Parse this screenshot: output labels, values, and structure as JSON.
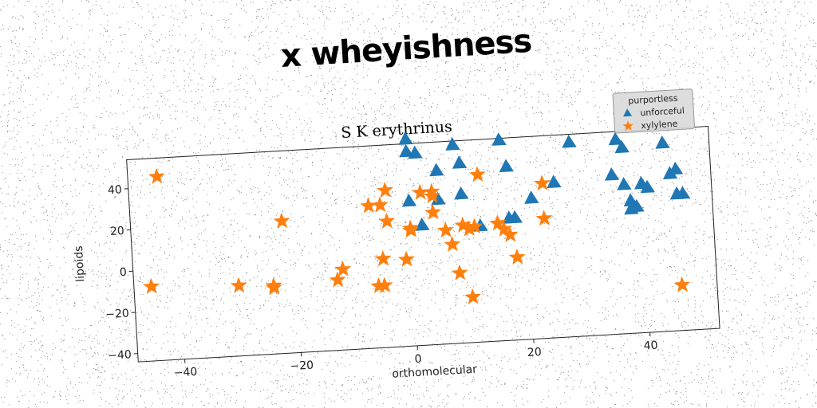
{
  "headline": "x wheyishness",
  "chart_data": {
    "type": "scatter",
    "title": "S K erythrinus",
    "xlabel": "orthomolecular",
    "ylabel": "lipoids",
    "xlim": [
      -48,
      52
    ],
    "ylim": [
      -44,
      54
    ],
    "xticks": [
      -40,
      -20,
      0,
      20,
      40
    ],
    "yticks": [
      -40,
      -20,
      0,
      20,
      40
    ],
    "grid": false,
    "legend": {
      "title": "purportless",
      "position": "top-right"
    },
    "series": [
      {
        "name": "unforceful",
        "marker": "triangle",
        "color": "#1f77b4",
        "points": [
          [
            0,
            56
          ],
          [
            0,
            50
          ],
          [
            1.5,
            49
          ],
          [
            8,
            52
          ],
          [
            16,
            53
          ],
          [
            28,
            50
          ],
          [
            36,
            50
          ],
          [
            37,
            46
          ],
          [
            44,
            47
          ],
          [
            5,
            40
          ],
          [
            9,
            43
          ],
          [
            17,
            40
          ],
          [
            0,
            26
          ],
          [
            5,
            26
          ],
          [
            9,
            28
          ],
          [
            21,
            24
          ],
          [
            25,
            31
          ],
          [
            35,
            33
          ],
          [
            37,
            28
          ],
          [
            40,
            28
          ],
          [
            41,
            26
          ],
          [
            45,
            32
          ],
          [
            46,
            34
          ],
          [
            46,
            22
          ],
          [
            47,
            22
          ],
          [
            38,
            20
          ],
          [
            39,
            17
          ],
          [
            38,
            16
          ],
          [
            18,
            15
          ],
          [
            17,
            15
          ],
          [
            2,
            14
          ],
          [
            12,
            12
          ]
        ]
      },
      {
        "name": "xylylene",
        "marker": "star",
        "color": "#ff7f0e",
        "points": [
          [
            -43,
            45
          ],
          [
            -22,
            20
          ],
          [
            -45,
            -8
          ],
          [
            -30,
            -10
          ],
          [
            -24,
            -11
          ],
          [
            -24,
            -12
          ],
          [
            -13,
            -10
          ],
          [
            -12,
            -5
          ],
          [
            -7,
            25
          ],
          [
            -5,
            25
          ],
          [
            -4,
            32
          ],
          [
            -4,
            17
          ],
          [
            -5,
            -1
          ],
          [
            -6,
            -14
          ],
          [
            -5,
            -14
          ],
          [
            -1,
            -2
          ],
          [
            0,
            13
          ],
          [
            0,
            12
          ],
          [
            2,
            30
          ],
          [
            4,
            30
          ],
          [
            4,
            28
          ],
          [
            4,
            20
          ],
          [
            6,
            11
          ],
          [
            7,
            4
          ],
          [
            9,
            13
          ],
          [
            10,
            11
          ],
          [
            11,
            12
          ],
          [
            12,
            37
          ],
          [
            15,
            13
          ],
          [
            16,
            10
          ],
          [
            17,
            7
          ],
          [
            18,
            -4
          ],
          [
            23,
            31
          ],
          [
            23,
            14
          ],
          [
            8,
            -10
          ],
          [
            10,
            -22
          ],
          [
            46,
            -22
          ]
        ]
      }
    ]
  }
}
